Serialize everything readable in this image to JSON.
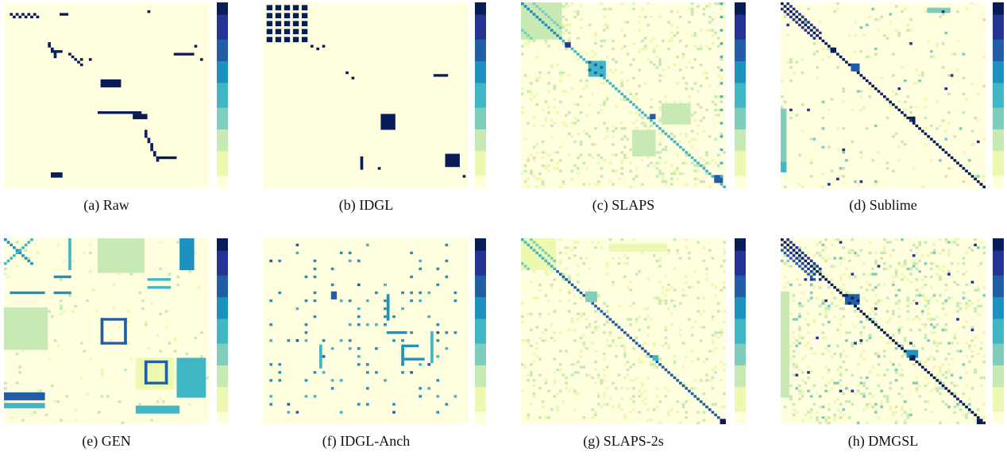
{
  "figure": {
    "colormap": [
      "#ffffd9",
      "#edf8b1",
      "#c7e9b4",
      "#7fcdbb",
      "#41b6c4",
      "#1d91c0",
      "#225ea8",
      "#253494",
      "#081d58"
    ],
    "background": "#ffffe0"
  },
  "chart_data": [
    {
      "type": "heatmap",
      "caption": "(a) Raw"
    },
    {
      "type": "heatmap",
      "caption": "(b) IDGL"
    },
    {
      "type": "heatmap",
      "caption": "(c) SLAPS"
    },
    {
      "type": "heatmap",
      "caption": "(d) Sublime"
    },
    {
      "type": "heatmap",
      "caption": "(e) GEN"
    },
    {
      "type": "heatmap",
      "caption": "(f) IDGL-Anch"
    },
    {
      "type": "heatmap",
      "caption": "(g) SLAPS-2s"
    },
    {
      "type": "heatmap",
      "caption": "(h) DMGSL"
    }
  ]
}
